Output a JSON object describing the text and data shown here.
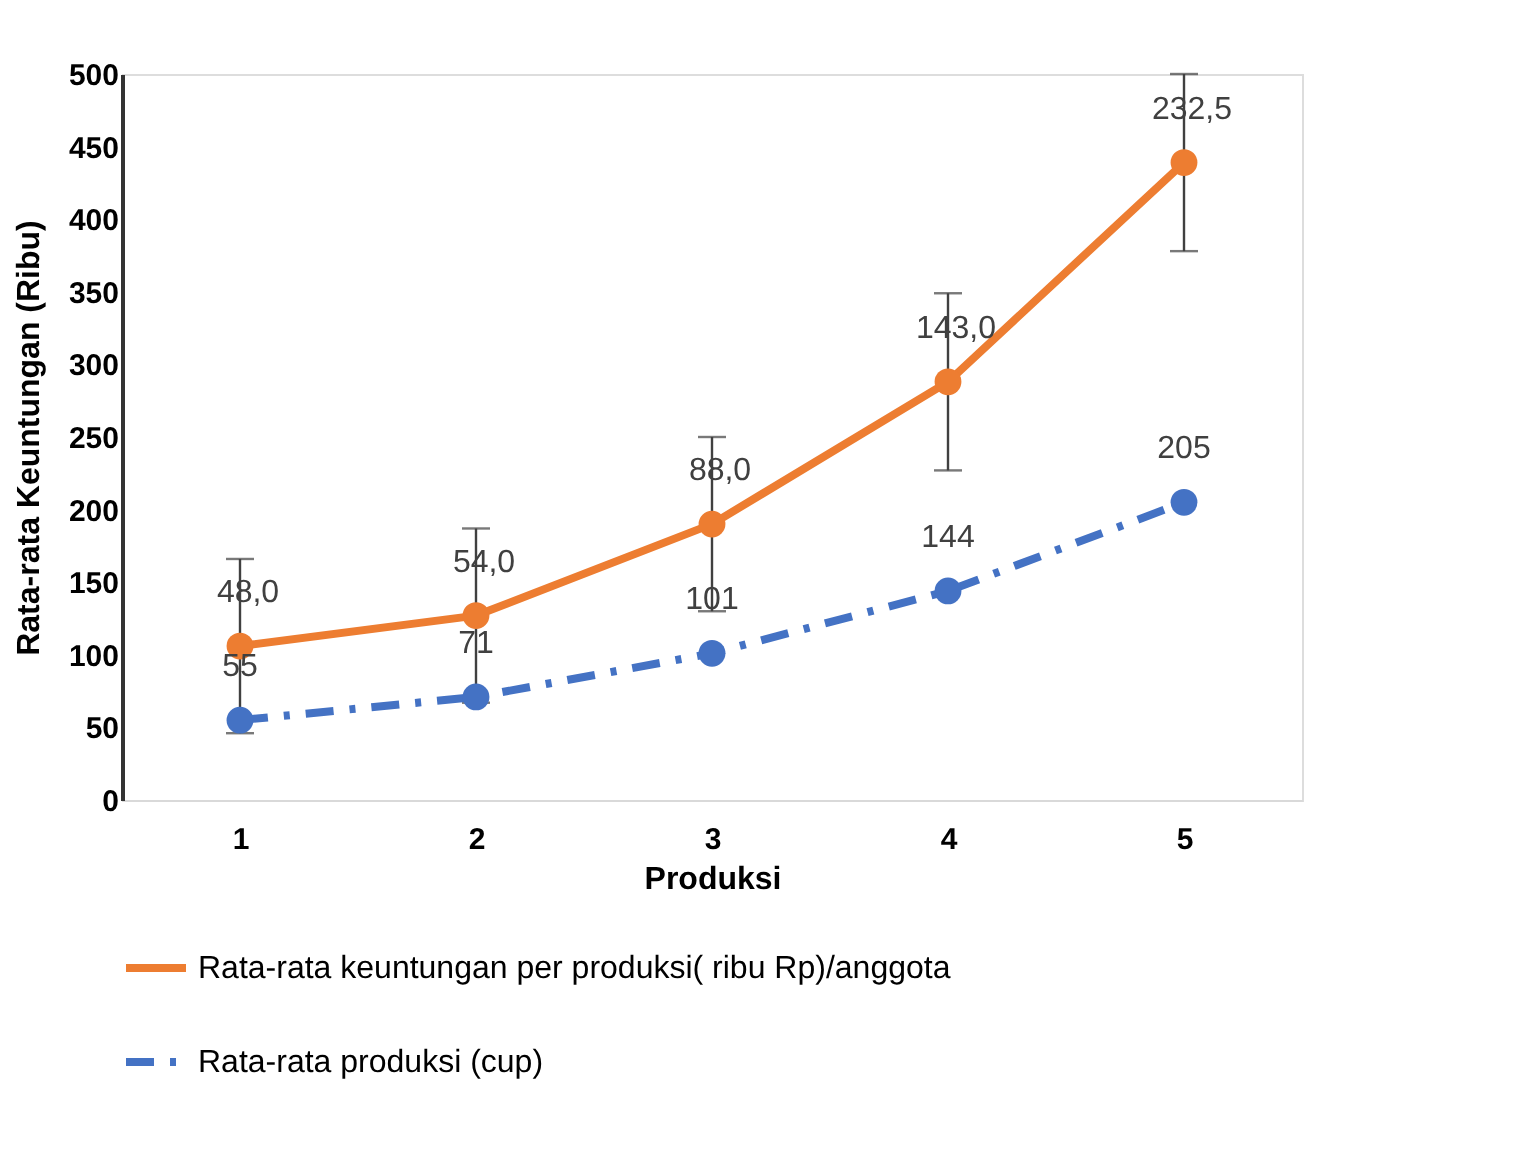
{
  "chart_data": {
    "type": "line",
    "xlabel": "Produksi",
    "ylabel": "Rata-rata Keuntungan (Ribu)",
    "categories": [
      "1",
      "2",
      "3",
      "4",
      "5"
    ],
    "ylim": [
      0,
      500
    ],
    "yticks": [
      0,
      50,
      100,
      150,
      200,
      250,
      300,
      350,
      400,
      450,
      500
    ],
    "grid": false,
    "legend": "bottom",
    "marker": "circle",
    "series": [
      {
        "name": "Rata-rata keuntungan per  produksi( ribu Rp)/anggota",
        "color": "#ed7d31",
        "line_style": "solid",
        "values": [
          106,
          127,
          190,
          288,
          439
        ],
        "errors": [
          60,
          60,
          60,
          61,
          61
        ]
      },
      {
        "name": "Rata-rata produksi (cup)",
        "color": "#4472c4",
        "line_style": "dashed",
        "values": [
          55,
          71,
          101,
          144,
          205
        ],
        "value_labels": [
          "55",
          "71",
          "101",
          "144",
          "205"
        ]
      }
    ],
    "annotations": [
      {
        "text": "48,0",
        "x": "1",
        "y": 106
      },
      {
        "text": "54,0",
        "x": "2",
        "y": 127
      },
      {
        "text": "88,0",
        "x": "3",
        "y": 190
      },
      {
        "text": "143,0",
        "x": "4",
        "y": 288
      },
      {
        "text": "232,5",
        "x": "5",
        "y": 439
      }
    ]
  }
}
